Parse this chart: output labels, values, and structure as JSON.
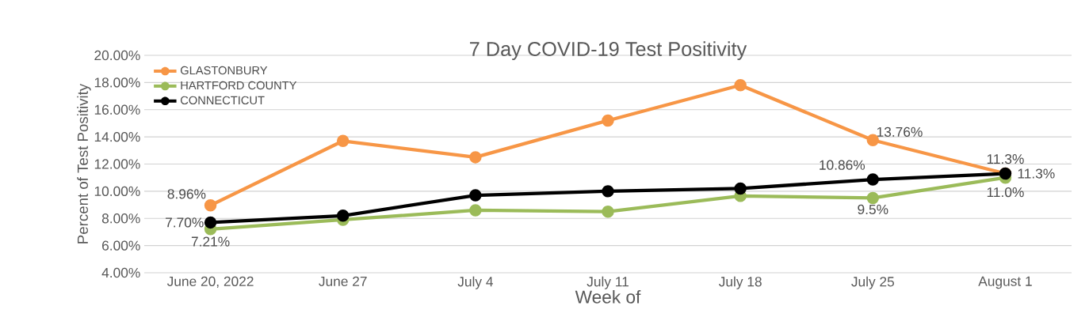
{
  "chart_data": {
    "type": "line",
    "title": "7 Day COVID-19 Test Positivity",
    "xlabel": "Week of",
    "ylabel": "Percent of Test Positivity",
    "categories": [
      "June 20, 2022",
      "June 27",
      "July 4",
      "July 11",
      "July 18",
      "July 25",
      "August 1"
    ],
    "series": [
      {
        "name": "GLASTONBURY",
        "color": "#f79646",
        "values": [
          8.96,
          13.7,
          12.5,
          15.2,
          17.8,
          13.76,
          11.3
        ],
        "value_labels": [
          "8.96%",
          null,
          null,
          null,
          null,
          "13.76%",
          "11.3%"
        ]
      },
      {
        "name": "HARTFORD COUNTY",
        "color": "#9bbb59",
        "values": [
          7.21,
          7.9,
          8.6,
          8.5,
          9.65,
          9.5,
          11.0
        ],
        "value_labels": [
          "7.21%",
          null,
          null,
          null,
          null,
          "9.5%",
          "11.0%"
        ]
      },
      {
        "name": "CONNECTICUT",
        "color": "#000000",
        "values": [
          7.7,
          8.2,
          9.7,
          10.0,
          10.2,
          10.86,
          11.3
        ],
        "value_labels": [
          "7.70%",
          null,
          null,
          null,
          null,
          "10.86%",
          "11.3%"
        ]
      }
    ],
    "ylim": [
      4,
      20
    ],
    "yticks": [
      {
        "value": 4,
        "label": "4.00%"
      },
      {
        "value": 6,
        "label": "6.00%"
      },
      {
        "value": 8,
        "label": "8.00%"
      },
      {
        "value": 10,
        "label": "10.00%"
      },
      {
        "value": 12,
        "label": "12.00%"
      },
      {
        "value": 14,
        "label": "14.00%"
      },
      {
        "value": 16,
        "label": "16.00%"
      },
      {
        "value": 18,
        "label": "18.00%"
      },
      {
        "value": 20,
        "label": "20.00%"
      }
    ],
    "grid": "y",
    "legend": "top left",
    "marker": "circle",
    "line_style": "solid"
  }
}
